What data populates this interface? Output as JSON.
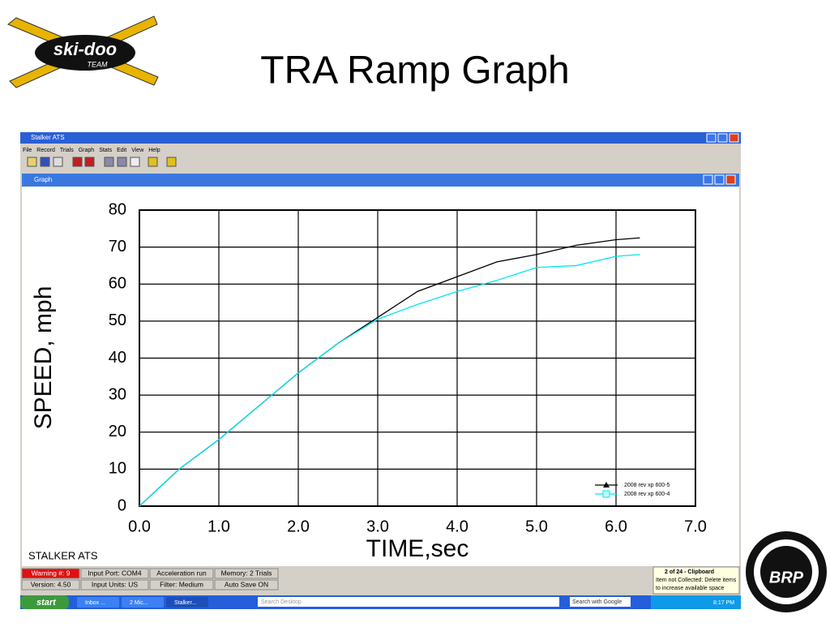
{
  "slide": {
    "title": "TRA Ramp Graph",
    "logo_left": "ski-doo",
    "logo_left_sub": "TEAM",
    "logo_right": "BRP"
  },
  "window": {
    "title": "Stalker ATS",
    "menu": [
      "File",
      "Record",
      "Trials",
      "Graph",
      "Stats",
      "Edit",
      "View",
      "Help"
    ],
    "child_title": "Graph",
    "watermark": "STALKER ATS"
  },
  "status_bar": {
    "row1": [
      "Warning #: 9",
      "Input Port: COM4",
      "Acceleration run",
      "Memory: 2 Trials"
    ],
    "row2": [
      "Version: 4.50",
      "Input Units: US",
      "Filter: Medium",
      "Auto Save ON"
    ]
  },
  "notification": {
    "title": "2 of 24 - Clipboard",
    "lines": [
      "Item not Collected: Delete items",
      "to increase available space"
    ]
  },
  "taskbar": {
    "start": "start",
    "items": [
      "Inbox ...",
      "2 Mic...",
      "Stalker..."
    ],
    "search": "Search Desktop",
    "search2": "Search with Google",
    "clock": "8:17 PM"
  },
  "chart_data": {
    "type": "line",
    "xlabel": "TIME,sec",
    "ylabel": "SPEED, mph",
    "x": [
      0,
      0.5,
      1,
      1.5,
      2,
      2.5,
      3,
      3.5,
      4,
      4.5,
      5,
      5.5,
      6,
      6.3
    ],
    "series": [
      {
        "name": "2008 rev xp 600-5",
        "color": "#000000",
        "marker": "triangle",
        "values": [
          0,
          10,
          18,
          27,
          36,
          44,
          51,
          58,
          62,
          66,
          68,
          70.5,
          72,
          72.5
        ]
      },
      {
        "name": "2008 rev xp 600-4",
        "color": "#00e5ee",
        "marker": "square",
        "values": [
          0,
          10,
          18,
          27,
          36,
          44,
          50.5,
          54.5,
          58,
          61,
          64.5,
          65,
          67.5,
          68
        ]
      }
    ],
    "xlim": [
      0,
      7
    ],
    "ylim": [
      0,
      80
    ],
    "xticks": [
      {
        "value": 0,
        "label": "0.0"
      },
      {
        "value": 1,
        "label": "1.0"
      },
      {
        "value": 2,
        "label": "2.0"
      },
      {
        "value": 3,
        "label": "3.0"
      },
      {
        "value": 4,
        "label": "4.0"
      },
      {
        "value": 5,
        "label": "5.0"
      },
      {
        "value": 6,
        "label": "6.0"
      },
      {
        "value": 7,
        "label": "7.0"
      }
    ],
    "yticks": [
      0,
      10,
      20,
      30,
      40,
      50,
      60,
      70,
      80
    ],
    "grid": true,
    "legend": "lower right"
  }
}
